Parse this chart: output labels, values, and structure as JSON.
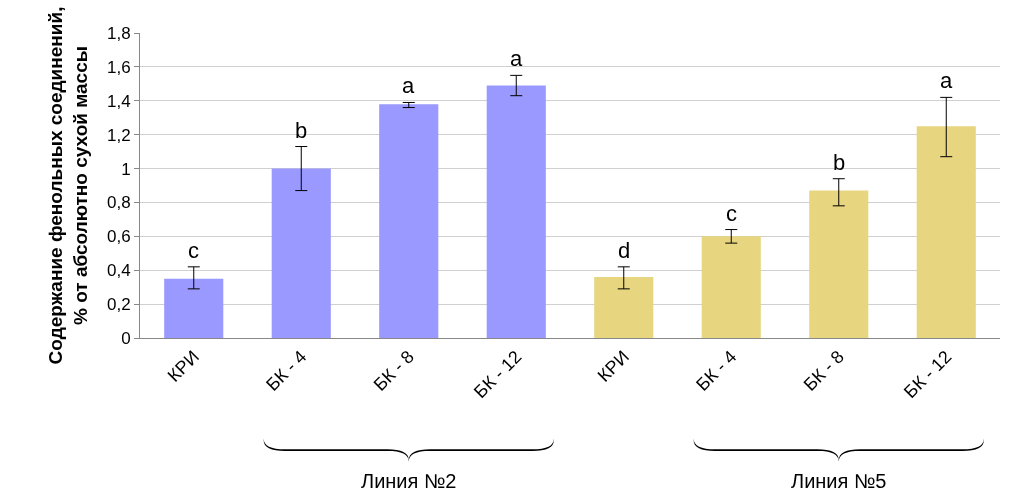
{
  "chart_data": {
    "type": "bar",
    "ylabel": "Содержание фенольных соединений,\n% от абсолютно сухой массы",
    "categories": [
      "КРИ",
      "БК - 4",
      "БК - 8",
      "БК - 12",
      "КРИ",
      "БК - 4",
      "БК - 8",
      "БК - 12"
    ],
    "values": [
      0.35,
      1.0,
      1.38,
      1.49,
      0.36,
      0.6,
      0.87,
      1.25
    ],
    "colors": [
      "#9999ff",
      "#9999ff",
      "#9999ff",
      "#9999ff",
      "#e8d57f",
      "#e8d57f",
      "#e8d57f",
      "#e8d57f"
    ],
    "errors": [
      [
        0.29,
        0.42
      ],
      [
        0.87,
        1.13
      ],
      [
        1.36,
        1.39
      ],
      [
        1.43,
        1.55
      ],
      [
        0.29,
        0.42
      ],
      [
        0.56,
        0.64
      ],
      [
        0.78,
        0.94
      ],
      [
        1.07,
        1.42
      ]
    ],
    "value_labels": [
      "c",
      "b",
      "a",
      "a",
      "d",
      "c",
      "b",
      "a"
    ],
    "ylim": [
      0,
      1.8
    ],
    "yticks": [
      {
        "value": 0,
        "label": "0"
      },
      {
        "value": 0.2,
        "label": "0,2"
      },
      {
        "value": 0.4,
        "label": "0,4"
      },
      {
        "value": 0.6,
        "label": "0,6"
      },
      {
        "value": 0.8,
        "label": "0,8"
      },
      {
        "value": 1,
        "label": "1"
      },
      {
        "value": 1.2,
        "label": "1,2"
      },
      {
        "value": 1.4,
        "label": "1,4"
      },
      {
        "value": 1.6,
        "label": "1,6"
      },
      {
        "value": 1.8,
        "label": "1,8"
      }
    ],
    "grid": "y",
    "annotations": [
      "Линия №2",
      "Линия №5"
    ]
  }
}
